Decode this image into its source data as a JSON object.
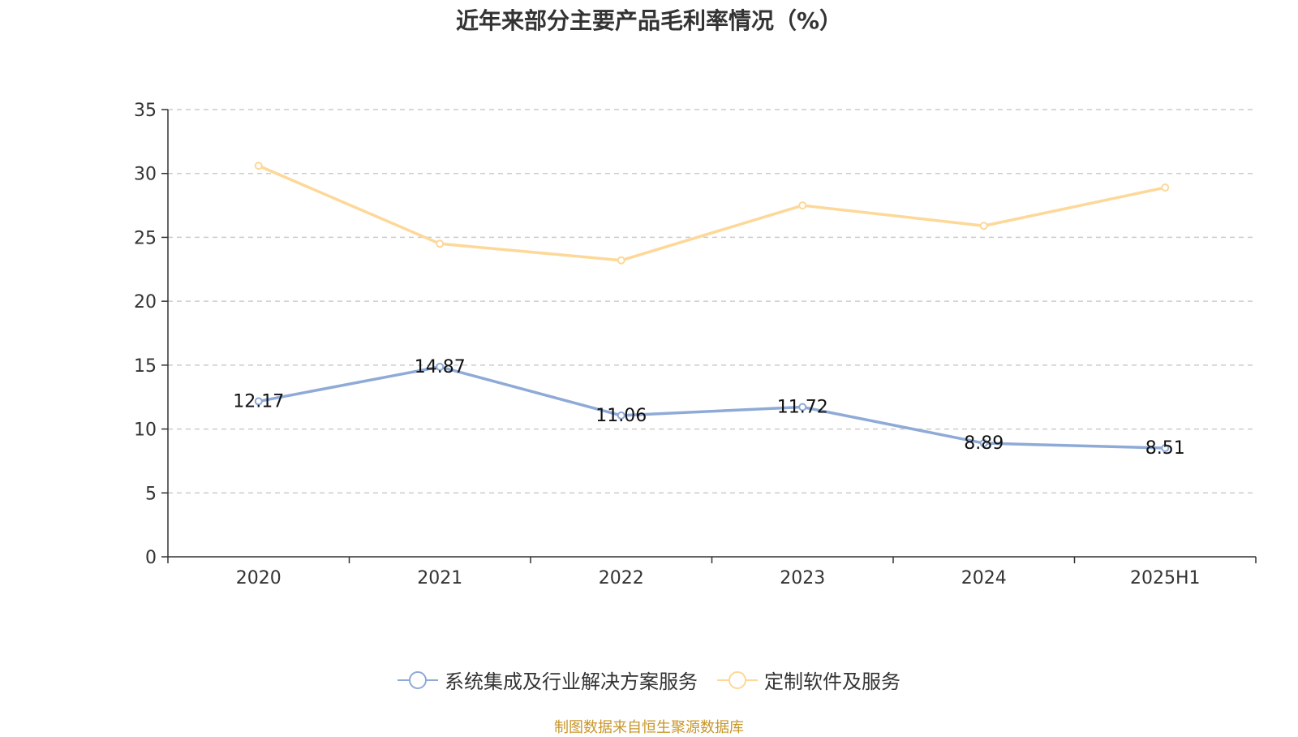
{
  "chart_data": {
    "type": "line",
    "title": "近年来部分主要产品毛利率情况（%）",
    "categories": [
      "2020",
      "2021",
      "2022",
      "2023",
      "2024",
      "2025H1"
    ],
    "ylim": [
      0,
      35
    ],
    "yticks": [
      0,
      5,
      10,
      15,
      20,
      25,
      30,
      35
    ],
    "grid": true,
    "legend_placement": "bottom",
    "series": [
      {
        "name": "系统集成及行业解决方案服务",
        "values": [
          12.17,
          14.87,
          11.06,
          11.72,
          8.89,
          8.51
        ],
        "data_labels": [
          "12.17",
          "14.87",
          "11.06",
          "11.72",
          "8.89",
          "8.51"
        ],
        "color": "#8eaad6"
      },
      {
        "name": "定制软件及服务",
        "values": [
          30.6,
          24.5,
          23.2,
          27.5,
          25.9,
          28.9
        ],
        "color": "#fdd898"
      }
    ]
  },
  "source_note": "制图数据来自恒生聚源数据库"
}
